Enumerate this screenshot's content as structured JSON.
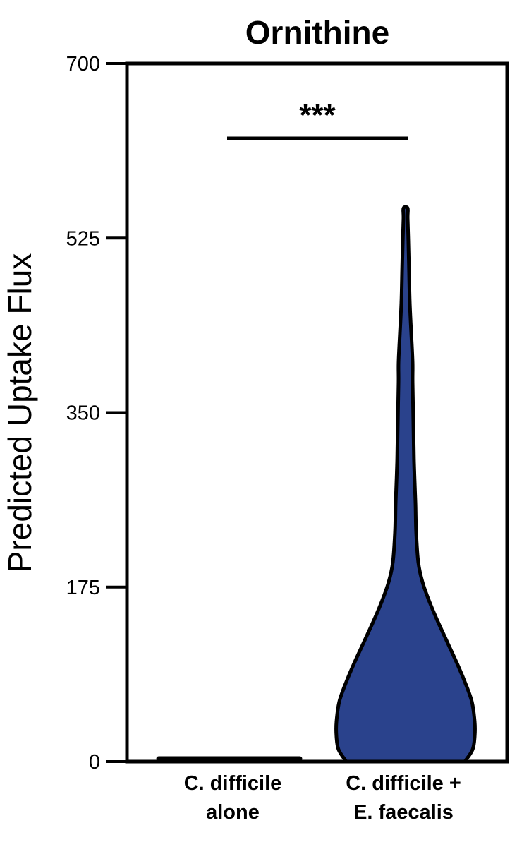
{
  "chart_data": {
    "type": "violin",
    "title": "Ornithine",
    "xlabel": "",
    "ylabel": "Predicted Uptake Flux",
    "ylim": [
      0,
      700
    ],
    "yticks": [
      "0",
      "175",
      "350",
      "525",
      "700"
    ],
    "ytick_values": [
      0,
      175,
      350,
      525,
      700
    ],
    "categories": [
      {
        "line1": "C. difficile",
        "line2": "alone"
      },
      {
        "line1": "C. difficile +",
        "line2": "E. faecalis"
      }
    ],
    "series": [
      {
        "category_index": 0,
        "fill": "#000000",
        "min": 0,
        "max": 5,
        "profile": [
          [
            0,
            1.0
          ],
          [
            2,
            1.0
          ],
          [
            4,
            0.6
          ],
          [
            5,
            0.3
          ]
        ]
      },
      {
        "category_index": 1,
        "fill": "#2a428c",
        "min": 0,
        "max": 555,
        "profile": [
          [
            0,
            0.84
          ],
          [
            12,
            0.95
          ],
          [
            25,
            0.98
          ],
          [
            40,
            0.98
          ],
          [
            60,
            0.94
          ],
          [
            80,
            0.84
          ],
          [
            100,
            0.72
          ],
          [
            120,
            0.59
          ],
          [
            140,
            0.46
          ],
          [
            160,
            0.34
          ],
          [
            180,
            0.24
          ],
          [
            200,
            0.18
          ],
          [
            230,
            0.15
          ],
          [
            260,
            0.14
          ],
          [
            300,
            0.12
          ],
          [
            340,
            0.11
          ],
          [
            380,
            0.1
          ],
          [
            400,
            0.1
          ],
          [
            430,
            0.08
          ],
          [
            460,
            0.06
          ],
          [
            490,
            0.05
          ],
          [
            520,
            0.04
          ],
          [
            545,
            0.03
          ],
          [
            555,
            0.03
          ]
        ]
      }
    ],
    "significance": {
      "label": "***",
      "between": [
        0,
        1
      ],
      "y": 625
    },
    "grid": false,
    "legend": "none"
  }
}
